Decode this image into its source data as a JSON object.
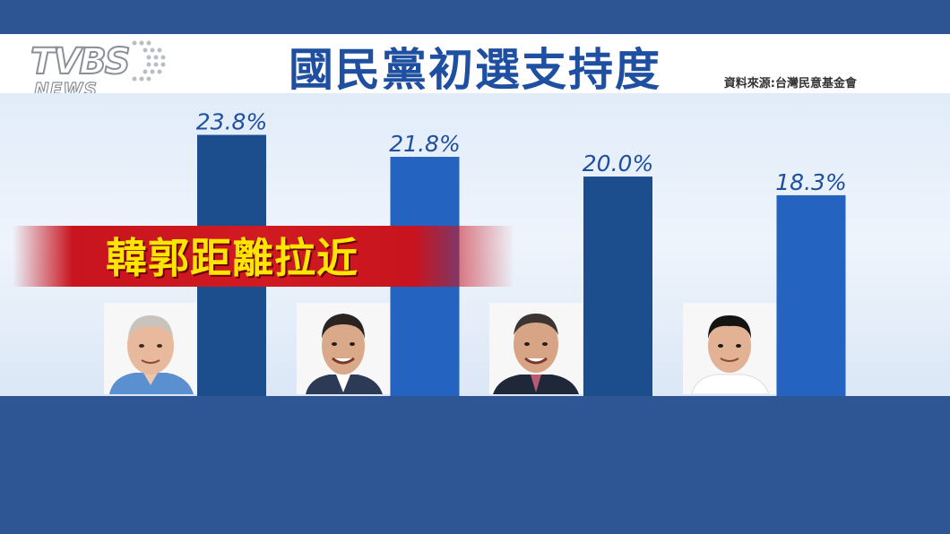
{
  "title": "國民黨初選支持度",
  "source": "資料來源:台灣民意基金會",
  "banner": "韓郭距離拉近",
  "logo": {
    "top": "TVBS",
    "bottom": "NEWS"
  },
  "colors": {
    "bar_dark": "#1c4e8e",
    "bar_light": "#2563c0",
    "label": "#1f4fa0",
    "banner": "#d11a22",
    "banner_text": "#ffe600"
  },
  "chart_data": {
    "type": "bar",
    "categories": [
      "",
      "",
      "",
      ""
    ],
    "values": [
      23.8,
      21.8,
      20.0,
      18.3
    ],
    "labels": [
      "23.8%",
      "21.8%",
      "20.0%",
      "18.3%"
    ],
    "title": "國民黨初選支持度",
    "xlabel": "",
    "ylabel": "",
    "ylim": [
      0,
      27.6
    ],
    "grid": false
  }
}
